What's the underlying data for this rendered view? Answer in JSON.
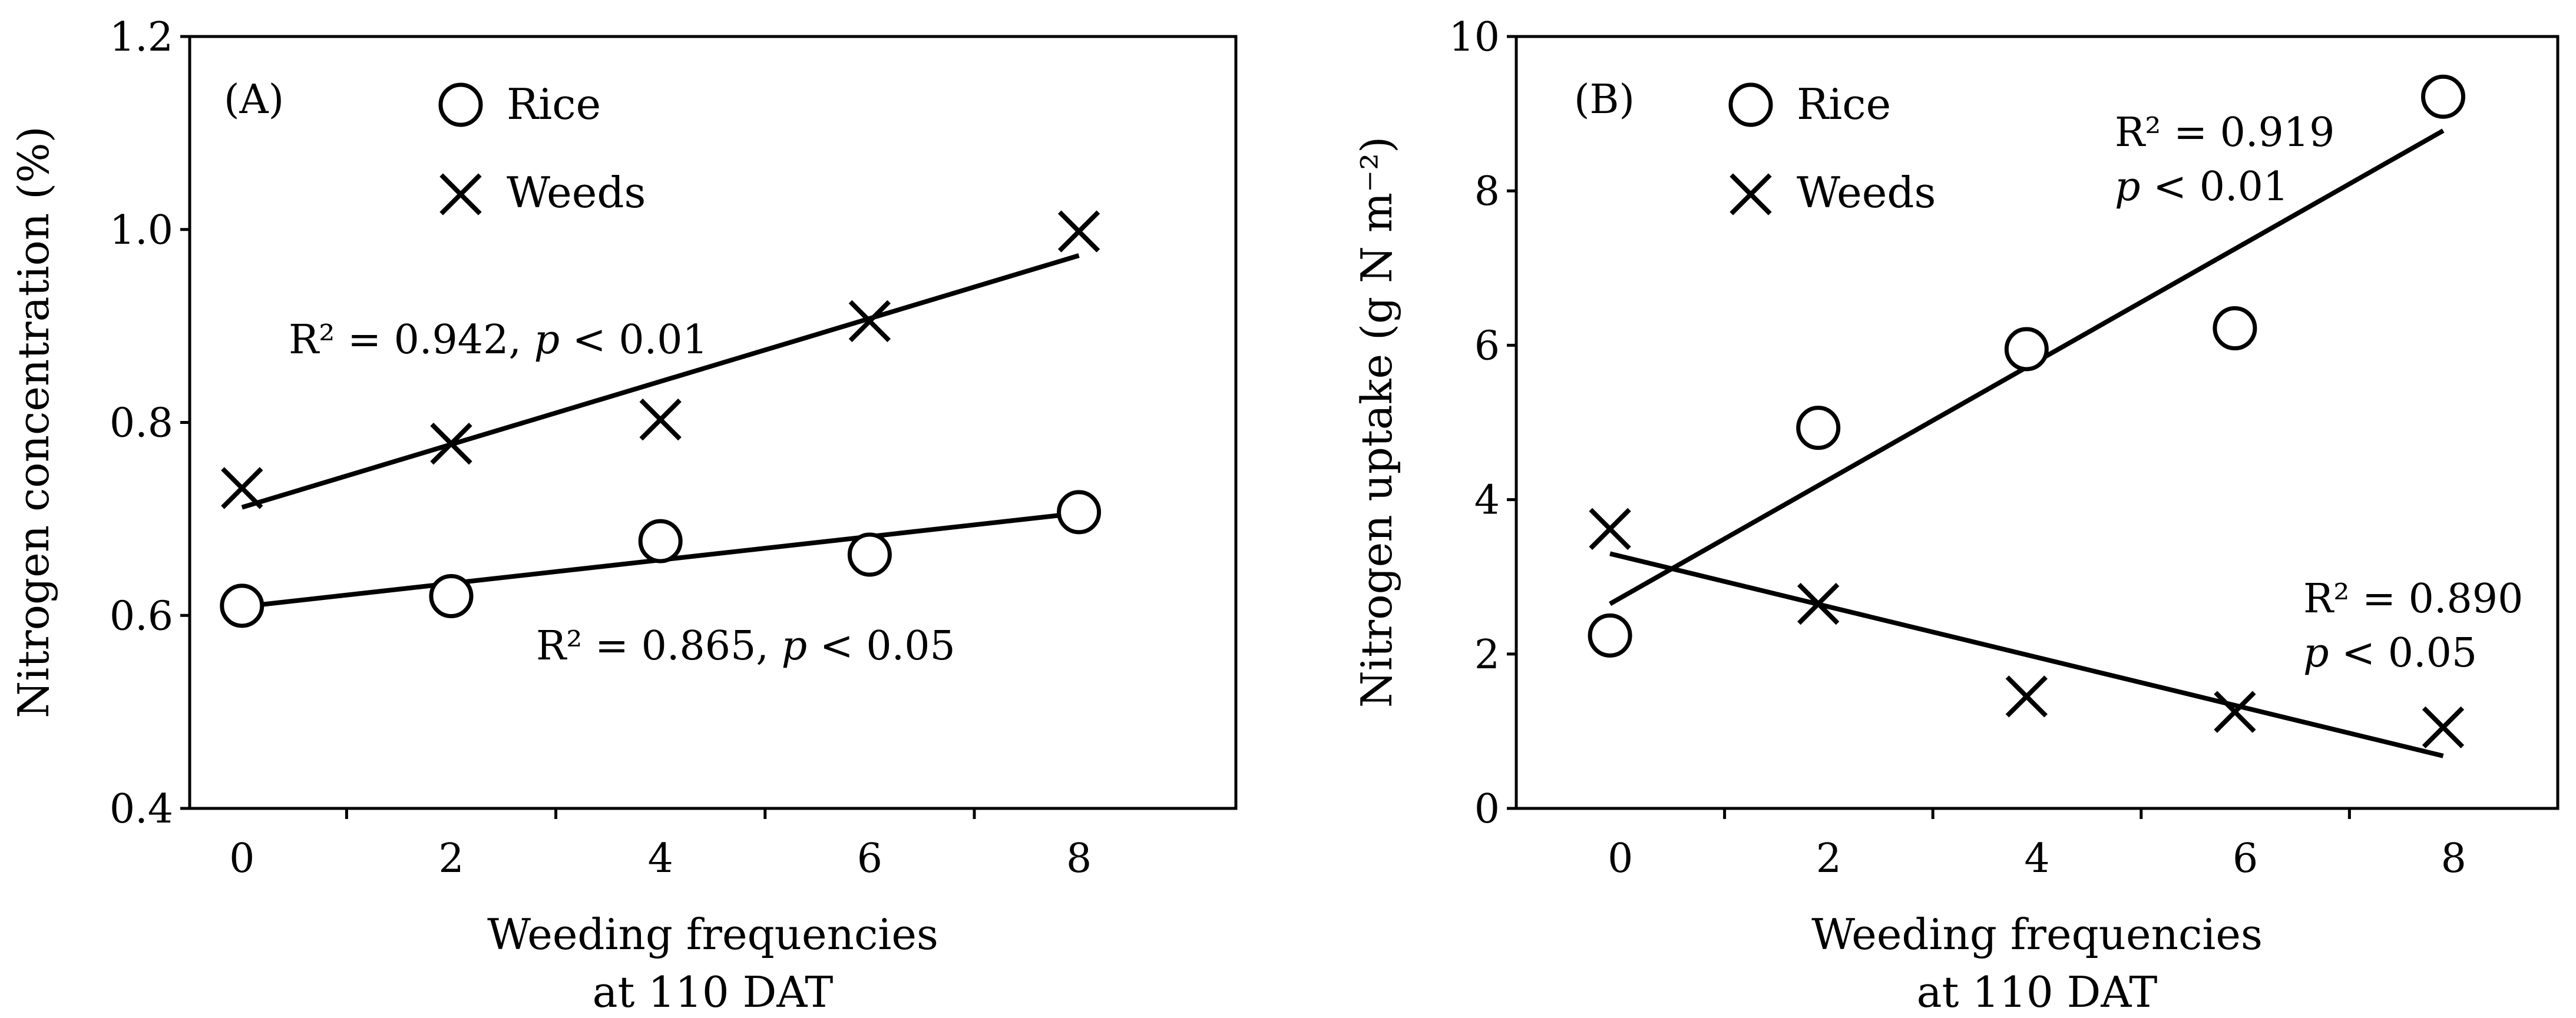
{
  "chart_data": [
    {
      "type": "scatter",
      "panel": "(A)",
      "xlabel": [
        "Weeding frequencies",
        "at 110 DAT"
      ],
      "ylabel": "Nitrogen concentration (%)",
      "xlim": [
        -0.5,
        9.5
      ],
      "ylim": [
        0.4,
        1.2
      ],
      "xticks": [
        0,
        2,
        4,
        6,
        8
      ],
      "xminor": [
        1,
        3,
        5,
        7
      ],
      "yticks": [
        0.4,
        0.6,
        0.8,
        1.0,
        1.2
      ],
      "ytick_labels": [
        "0.4",
        "0.6",
        "0.8",
        "1.0",
        "1.2"
      ],
      "xtick_labels": [
        "0",
        "2",
        "4",
        "6",
        "8"
      ],
      "legend": [
        "Rice",
        "Weeds"
      ],
      "series": [
        {
          "name": "Rice",
          "marker": "circle",
          "x": [
            0,
            2,
            4,
            6,
            8
          ],
          "y": [
            0.61,
            0.62,
            0.677,
            0.663,
            0.707
          ],
          "fit": {
            "x": [
              0,
              8
            ],
            "y": [
              0.609,
              0.706
            ]
          }
        },
        {
          "name": "Weeds",
          "marker": "x",
          "x": [
            0,
            2,
            4,
            6,
            8
          ],
          "y": [
            0.732,
            0.778,
            0.803,
            0.905,
            0.998
          ],
          "fit": {
            "x": [
              0,
              8
            ],
            "y": [
              0.712,
              0.973
            ]
          }
        }
      ],
      "annotations": [
        {
          "r2": "R² = 0.942, ",
          "p": "p",
          "rest": " < 0.01",
          "anchor_x": 0,
          "anchor_y": 0.88
        },
        {
          "r2": "R² = 0.865, ",
          "p": "p",
          "rest": " < 0.05",
          "anchor_x": 2.3,
          "anchor_y": 0.56
        }
      ]
    },
    {
      "type": "scatter",
      "panel": "(B)",
      "xlabel": [
        "Weeding frequencies",
        "at 110 DAT"
      ],
      "ylabel": "Nitrogen uptake (g N m⁻²)",
      "xlim": [
        -1,
        9
      ],
      "ylim": [
        0,
        10
      ],
      "xticks": [
        0,
        2,
        4,
        6,
        8
      ],
      "xminor": [
        1,
        3,
        5,
        7
      ],
      "yticks": [
        0,
        2,
        4,
        6,
        8,
        10
      ],
      "ytick_labels": [
        "0",
        "2",
        "4",
        "6",
        "8",
        "10"
      ],
      "xtick_labels": [
        "0",
        "2",
        "4",
        "6",
        "8"
      ],
      "legend": [
        "Rice",
        "Weeds"
      ],
      "series": [
        {
          "name": "Rice",
          "marker": "circle",
          "x": [
            -0.1,
            1.9,
            3.9,
            5.9,
            7.9
          ],
          "y": [
            2.24,
            4.93,
            5.95,
            6.22,
            9.22
          ],
          "fit": {
            "x": [
              -0.1,
              7.9
            ],
            "y": [
              2.65,
              8.78
            ]
          }
        },
        {
          "name": "Weeds",
          "marker": "x",
          "x": [
            -0.1,
            1.9,
            3.9,
            5.9,
            7.9
          ],
          "y": [
            3.62,
            2.65,
            1.45,
            1.25,
            1.05
          ],
          "fit": {
            "x": [
              -0.1,
              7.9
            ],
            "y": [
              3.3,
              0.68
            ]
          }
        }
      ],
      "annotations": [
        {
          "r2": "R² = 0.919",
          "p": "p",
          "rest": " < 0.01",
          "anchor_x": 4.8,
          "anchor_y": 8.7
        },
        {
          "r2": "R² = 0.890",
          "p": "p",
          "rest": " < 0.05",
          "anchor_x": 6.6,
          "anchor_y": 2.6
        }
      ]
    }
  ]
}
